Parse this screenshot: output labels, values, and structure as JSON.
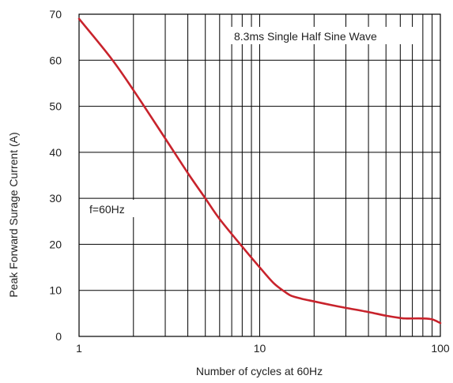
{
  "chart_data": {
    "type": "line",
    "title": "",
    "xlabel": "Number of cycles at 60Hz",
    "ylabel": "Peak Forward Surage Current (A)",
    "xscale": "log",
    "xlim": [
      1,
      100
    ],
    "ylim": [
      0,
      70
    ],
    "x_ticks": [
      1,
      10,
      100
    ],
    "x_tick_labels": [
      "1",
      "10",
      "100"
    ],
    "y_ticks": [
      0,
      10,
      20,
      30,
      40,
      50,
      60,
      70
    ],
    "y_tick_labels": [
      "0",
      "10",
      "20",
      "30",
      "40",
      "50",
      "60",
      "70"
    ],
    "grid": true,
    "line_color": "#c8232c",
    "annotations": [
      "8.3ms Single Half Sine Wave",
      "f=60Hz"
    ],
    "series": [
      {
        "x": [
          1,
          1.5,
          2,
          3,
          4,
          5,
          6,
          8,
          10,
          12,
          14,
          15,
          17,
          20,
          25,
          30,
          40,
          50,
          60,
          65,
          80,
          90,
          100
        ],
        "values": [
          69,
          60.5,
          53.5,
          43,
          35.5,
          30,
          25.5,
          19.5,
          15,
          11.5,
          9.5,
          8.8,
          8.2,
          7.6,
          6.8,
          6.2,
          5.3,
          4.5,
          4.0,
          3.9,
          3.9,
          3.7,
          2.9
        ]
      }
    ]
  }
}
